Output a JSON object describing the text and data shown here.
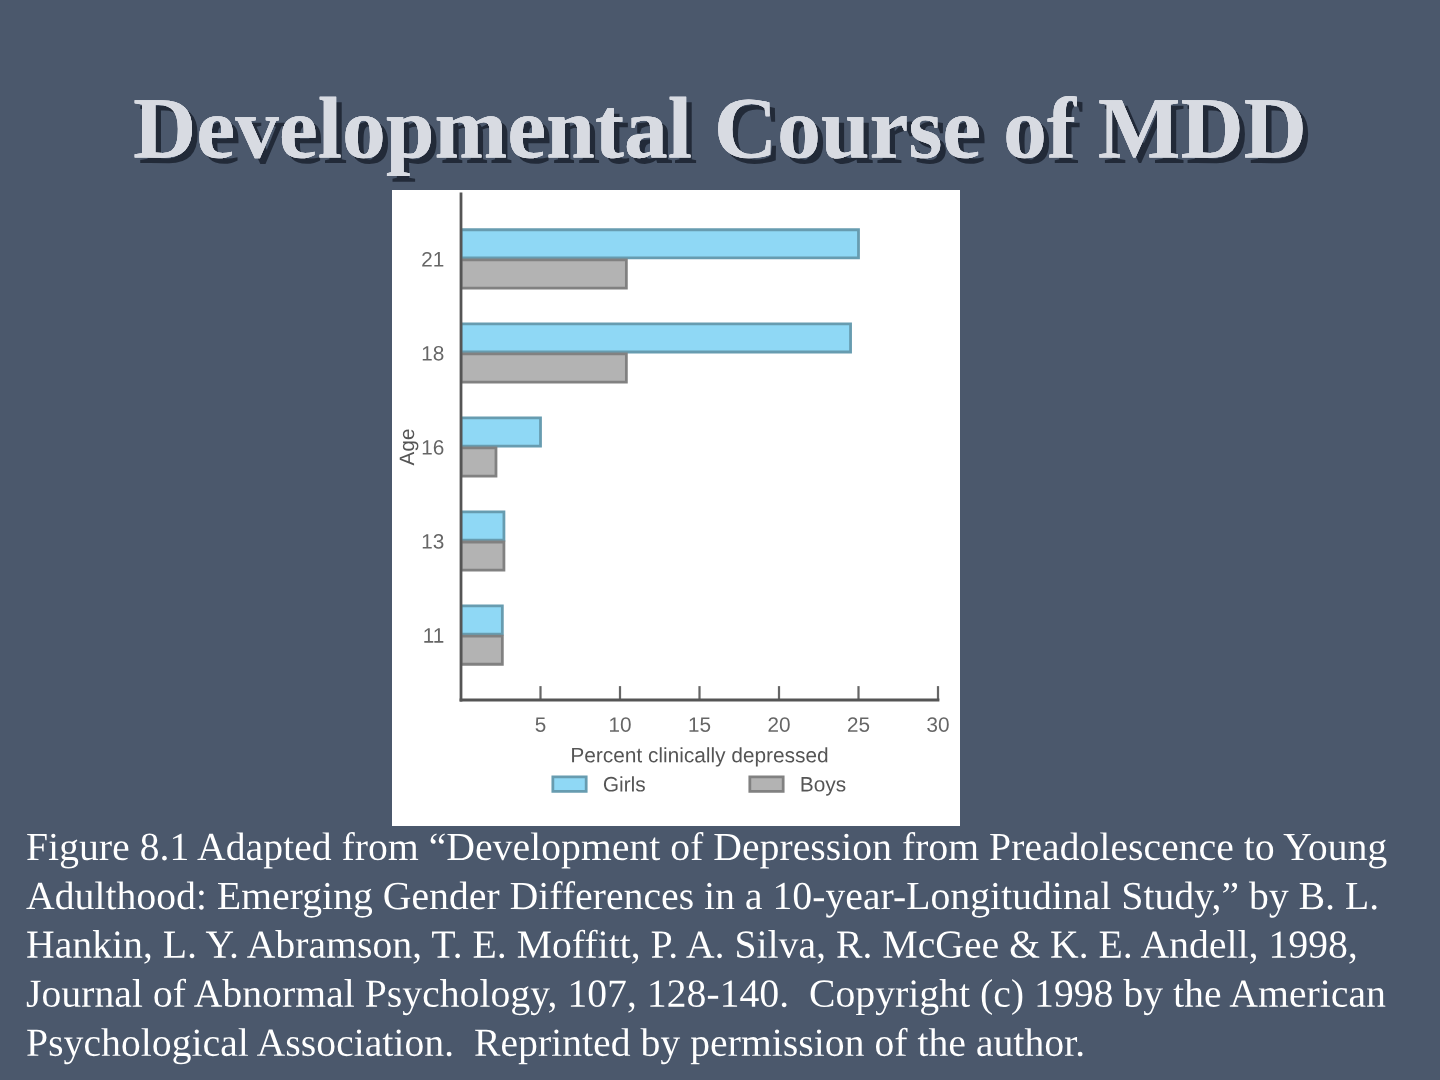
{
  "chart_data": {
    "type": "bar",
    "orientation": "horizontal",
    "title": "Developmental Course of MDD",
    "xlabel": "Percent clinically depressed",
    "ylabel": "Age",
    "categories": [
      "21",
      "18",
      "16",
      "13",
      "11"
    ],
    "series": [
      {
        "name": "Girls",
        "color": "#8fd8f5",
        "values": [
          25,
          24.5,
          5,
          2.7,
          2.6
        ]
      },
      {
        "name": "Boys",
        "color": "#b3b3b3",
        "values": [
          10.4,
          10.4,
          2.2,
          2.7,
          2.6
        ]
      }
    ],
    "xlim": [
      0,
      30
    ],
    "xticks": [
      5,
      10,
      15,
      20,
      25,
      30
    ],
    "legend": "bottom",
    "annotations": [
      "Figure 8.1 Adapted from “Development of Depression from Preadolescence to Young Adulthood: Emerging Gender Differences in a 10-year-Longitudinal Study,” by B. L. Hankin, L. Y. Abramson, T. E. Moffitt, P. A. Silva, R. McGee & K. E. Andell, 1998, Journal of Abnormal Psychology, 107, 128-140.  Copyright (c) 1998 by the American Psychological Association.  Reprinted by permission of the author."
    ]
  }
}
